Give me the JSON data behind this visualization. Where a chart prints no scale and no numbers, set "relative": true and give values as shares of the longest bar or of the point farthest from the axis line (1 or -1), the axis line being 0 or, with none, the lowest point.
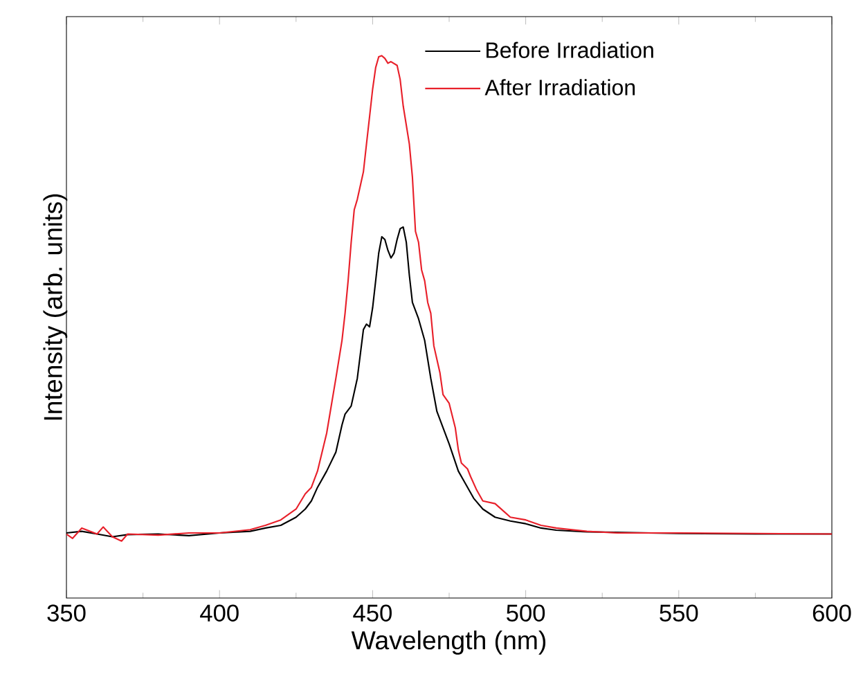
{
  "chart_data": {
    "type": "line",
    "xlabel": "Wavelength (nm)",
    "ylabel": "Intensity (arb. units)",
    "relative": true,
    "xlim": [
      350,
      600
    ],
    "xticks": [
      350,
      400,
      450,
      500,
      550,
      600
    ],
    "legend": "top right",
    "grid": false,
    "marker": "none",
    "line_style": "solid",
    "series": [
      {
        "name": "Before Irradiation",
        "color": "#000000",
        "x": [
          350,
          355,
          360,
          365,
          370,
          380,
          390,
          400,
          410,
          415,
          420,
          425,
          428,
          430,
          432,
          435,
          438,
          440,
          441,
          443,
          445,
          447,
          448,
          449,
          450,
          451,
          452,
          453,
          454,
          455,
          456,
          457,
          458,
          459,
          460,
          461,
          462,
          463,
          465,
          467,
          469,
          471,
          473,
          475,
          478,
          480,
          483,
          486,
          490,
          495,
          500,
          505,
          510,
          520,
          530,
          550,
          575,
          600
        ],
        "values": [
          0.12,
          0.123,
          0.118,
          0.113,
          0.117,
          0.118,
          0.115,
          0.12,
          0.123,
          0.129,
          0.134,
          0.149,
          0.164,
          0.179,
          0.204,
          0.234,
          0.269,
          0.319,
          0.339,
          0.354,
          0.405,
          0.495,
          0.505,
          0.5,
          0.535,
          0.585,
          0.636,
          0.666,
          0.661,
          0.641,
          0.627,
          0.636,
          0.661,
          0.681,
          0.684,
          0.656,
          0.595,
          0.545,
          0.515,
          0.475,
          0.405,
          0.344,
          0.314,
          0.284,
          0.234,
          0.214,
          0.184,
          0.164,
          0.149,
          0.142,
          0.137,
          0.129,
          0.125,
          0.122,
          null,
          0.119,
          0.118,
          0.118
        ]
      },
      {
        "name": "After Irradiation",
        "color": "#e8202a",
        "x": [
          350,
          352,
          355,
          360,
          362,
          365,
          368,
          370,
          380,
          390,
          400,
          410,
          415,
          420,
          425,
          428,
          430,
          432,
          435,
          438,
          440,
          441,
          442,
          443,
          444,
          445,
          447,
          448,
          449,
          450,
          451,
          452,
          453,
          454,
          455,
          456,
          458,
          459,
          460,
          462,
          463,
          464,
          465,
          466,
          467,
          468,
          469,
          470,
          472,
          473,
          475,
          477,
          478,
          479,
          481,
          482,
          484,
          486,
          490,
          493,
          495,
          500,
          505,
          510,
          520,
          530,
          550,
          575,
          600
        ],
        "values": [
          0.118,
          0.11,
          0.129,
          0.118,
          0.131,
          0.113,
          0.105,
          0.118,
          0.116,
          0.12,
          0.12,
          0.126,
          0.134,
          0.144,
          0.164,
          0.192,
          0.204,
          0.234,
          0.304,
          0.405,
          0.475,
          0.525,
          0.585,
          0.656,
          0.716,
          0.735,
          0.786,
          0.837,
          0.887,
          0.938,
          0.978,
          0.998,
          1.0,
          0.995,
          0.986,
          0.989,
          0.982,
          0.956,
          0.907,
          0.837,
          0.776,
          0.676,
          0.656,
          0.605,
          0.585,
          0.545,
          0.525,
          0.465,
          0.415,
          0.375,
          0.359,
          0.314,
          0.273,
          0.249,
          0.238,
          0.224,
          0.199,
          0.179,
          0.174,
          0.159,
          0.149,
          0.144,
          0.134,
          0.129,
          0.123,
          0.12,
          0.12,
          0.119,
          0.118
        ]
      }
    ]
  }
}
